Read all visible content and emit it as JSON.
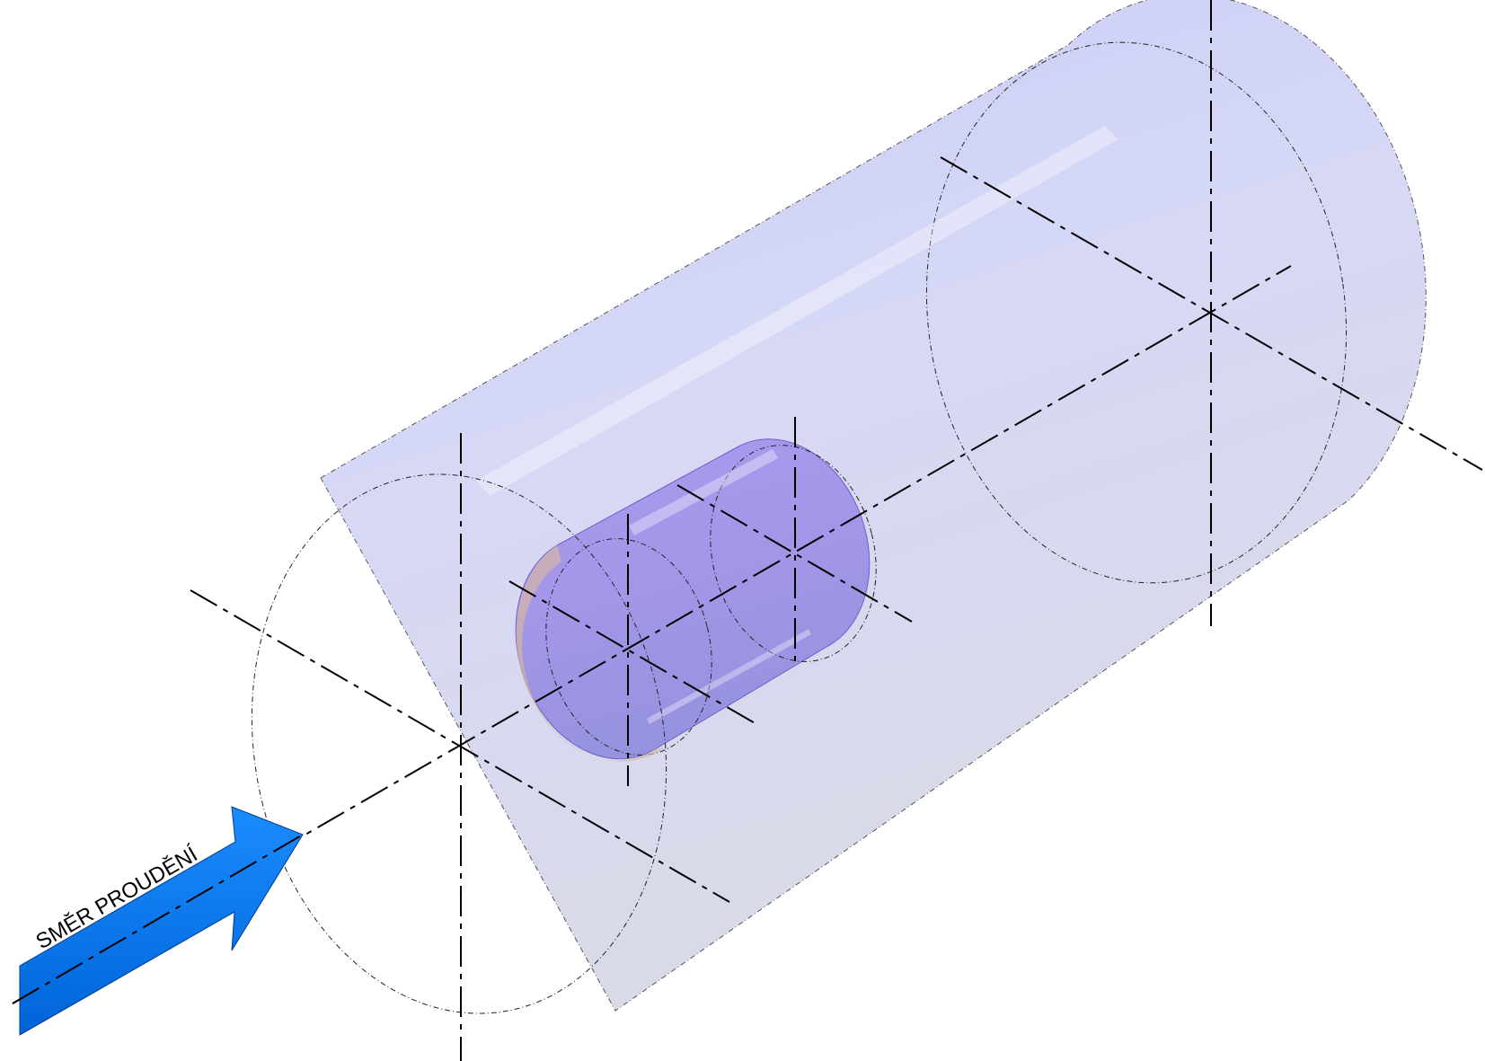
{
  "diagram": {
    "flow_direction_label": "SMĚR PROUDĚNÍ",
    "colors": {
      "outer_cylinder": "#cfd2f4",
      "inlet_face": "#e8e4bc",
      "inner_cylinder": "#a494ee",
      "flow_arrow": "#0a7cf0",
      "axis_lines": "#000000"
    }
  }
}
